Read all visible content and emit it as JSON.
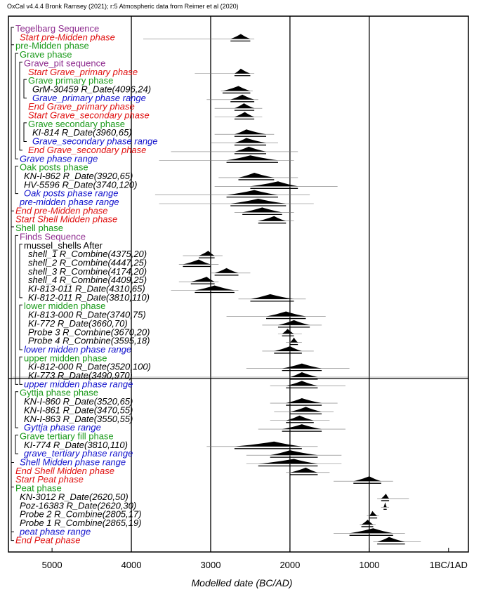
{
  "caption": "OxCal v4.4.4 Bronk Ramsey (2021); r:5 Atmospheric data from Reimer et al (2020)",
  "chart_data": {
    "type": "oxcal-multiplot",
    "title": "",
    "xlabel": "Modelled date (BC/AD)",
    "ylabel": "",
    "x_axis_unit": "calendar year BC (BC/AD at 0)",
    "xlim": [
      5550,
      -250
    ],
    "tick_values": [
      5000,
      4000,
      3000,
      2000,
      1000,
      0
    ],
    "tick_labels": [
      "5000",
      "4000",
      "3000",
      "2000",
      "1000",
      "1BC/1AD"
    ],
    "grid_vertical_at": [
      4000,
      3000,
      2000,
      1000
    ],
    "horizontal_line_after_row": "KI-773 R_Date(3490,970)",
    "colors": {
      "purple": "#8e2c8f",
      "green": "#1a9a1a",
      "red": "#e01010",
      "blue": "#1010cc",
      "black": "#000000"
    },
    "rows": [
      {
        "label": "Tegelbarg Sequence",
        "color": "purple",
        "indent": 0,
        "italic": false
      },
      {
        "label": "Start pre-Midden phase",
        "color": "red",
        "indent": 1,
        "italic": true,
        "range": [
          2750,
          2500
        ],
        "peak": 2620,
        "line": [
          3850,
          2450
        ]
      },
      {
        "label": "pre-Midden phase",
        "color": "green",
        "indent": 0,
        "italic": false
      },
      {
        "label": "Grave phase",
        "color": "green",
        "indent": 1,
        "italic": false
      },
      {
        "label": "Grave_pit sequence",
        "color": "purple",
        "indent": 2,
        "italic": false
      },
      {
        "label": "Start Grave_primary phase",
        "color": "red",
        "indent": 3,
        "italic": true,
        "range": [
          2700,
          2500
        ],
        "peak": 2620,
        "line": [
          3200,
          2450
        ]
      },
      {
        "label": "Grave primary phase",
        "color": "green",
        "indent": 3,
        "italic": false
      },
      {
        "label": "GrM-30459 R_Date(4096,24)",
        "color": "black",
        "indent": 4,
        "italic": true,
        "range": [
          2850,
          2500
        ],
        "peak": 2650,
        "line": [
          2870,
          2470
        ]
      },
      {
        "label": "Grave_primary phase range",
        "color": "blue",
        "indent": 4,
        "italic": true,
        "range": [
          2750,
          2450
        ],
        "peak": 2600,
        "line": [
          3050,
          2400
        ]
      },
      {
        "label": "End Grave_primary phase",
        "color": "red",
        "indent": 3,
        "italic": true,
        "range": [
          2700,
          2450
        ],
        "peak": 2580,
        "line": [
          2950,
          2350
        ]
      },
      {
        "label": "Start Grave_secondary phase",
        "color": "red",
        "indent": 3,
        "italic": true,
        "range": [
          2700,
          2450
        ],
        "peak": 2570,
        "line": [
          2950,
          2350
        ]
      },
      {
        "label": "Grave secondary phase",
        "color": "green",
        "indent": 3,
        "italic": false
      },
      {
        "label": "KI-814 R_Date(3960,65)",
        "color": "black",
        "indent": 4,
        "italic": true,
        "range": [
          2700,
          2300
        ],
        "peak": 2550,
        "line": [
          2950,
          2200
        ]
      },
      {
        "label": "Grave_secondary phase range",
        "color": "blue",
        "indent": 4,
        "italic": true,
        "range": [
          2700,
          2300
        ],
        "peak": 2550,
        "line": [
          3000,
          2150
        ]
      },
      {
        "label": "End Grave_secondary phase",
        "color": "red",
        "indent": 3,
        "italic": true,
        "range": [
          2700,
          2300
        ],
        "peak": 2520,
        "line": [
          3500,
          1900
        ]
      },
      {
        "label": "Grave phase range",
        "color": "blue",
        "indent": 1,
        "italic": true,
        "range": [
          2800,
          2150
        ],
        "peak": 2500,
        "line": [
          3650,
          1950
        ]
      },
      {
        "label": "Oak posts phase",
        "color": "green",
        "indent": 1,
        "italic": false
      },
      {
        "label": "KN-I-862 R_Date(3920,65)",
        "color": "black",
        "indent": 2,
        "italic": true,
        "range": [
          2650,
          2200
        ],
        "peak": 2450,
        "line": [
          2900,
          1900
        ]
      },
      {
        "label": "HV-5596 R_Date(3740,120)",
        "color": "black",
        "indent": 2,
        "italic": true,
        "range": [
          2500,
          1900
        ],
        "peak": 2150,
        "line": [
          2950,
          1400
        ]
      },
      {
        "label": "Oak posts phase range",
        "color": "blue",
        "indent": 2,
        "italic": true,
        "range": [
          2800,
          2150
        ],
        "peak": 2450,
        "line": [
          3700,
          1750
        ]
      },
      {
        "label": "pre-midden phase range",
        "color": "blue",
        "indent": 1,
        "italic": true,
        "range": [
          2750,
          2050
        ],
        "peak": 2400,
        "line": [
          3650,
          1700
        ]
      },
      {
        "label": "End pre-Midden phase",
        "color": "red",
        "indent": 0,
        "italic": true,
        "range": [
          2600,
          2100
        ],
        "peak": 2350,
        "line": [
          2700,
          1950
        ]
      },
      {
        "label": "Start Shell Midden phase",
        "color": "red",
        "indent": 0,
        "italic": true,
        "range": [
          2400,
          2050
        ],
        "peak": 2200,
        "line": [
          2400,
          1950
        ]
      },
      {
        "label": "Shell phase",
        "color": "green",
        "indent": 0,
        "italic": false
      },
      {
        "label": "Finds Sequence",
        "color": "purple",
        "indent": 1,
        "italic": false
      },
      {
        "label": "mussel_shells After",
        "color": "black",
        "indent": 2,
        "italic": false
      },
      {
        "label": "shell_1 R_Combine(4375,20)",
        "color": "black",
        "indent": 3,
        "italic": true,
        "range": [
          3150,
          2950
        ],
        "peak": 3030,
        "line": [
          3350,
          2850
        ]
      },
      {
        "label": "shell_2 R_Combine(4447,25)",
        "color": "black",
        "indent": 3,
        "italic": true,
        "range": [
          3350,
          3000
        ],
        "peak": 3150,
        "line": [
          3400,
          2900
        ]
      },
      {
        "label": "shell_3 R_Combine(4174,20)",
        "color": "black",
        "indent": 3,
        "italic": true,
        "range": [
          2950,
          2650
        ],
        "peak": 2800,
        "line": [
          3000,
          2500
        ]
      },
      {
        "label": "shell_4 R_Combine(4409,25)",
        "color": "black",
        "indent": 3,
        "italic": true,
        "range": [
          3250,
          2950
        ],
        "peak": 3050,
        "line": [
          3400,
          2900
        ]
      },
      {
        "label": "KI-813-011 R_Date(4310,65)",
        "color": "black",
        "indent": 3,
        "italic": true,
        "range": [
          3200,
          2700
        ],
        "peak": 2950,
        "line": [
          3500,
          2650
        ]
      },
      {
        "label": "KI-812-011 R_Date(3810,110)",
        "color": "black",
        "indent": 3,
        "italic": true,
        "range": [
          2500,
          1950
        ],
        "peak": 2250,
        "line": [
          2650,
          1800
        ]
      },
      {
        "label": "lower midden phase",
        "color": "green",
        "indent": 2,
        "italic": false
      },
      {
        "label": "KI-813-000 R_Date(3740,75)",
        "color": "black",
        "indent": 3,
        "italic": true,
        "range": [
          2300,
          1800
        ],
        "peak": 2050,
        "line": [
          2800,
          1550
        ]
      },
      {
        "label": "KI-772 R_Date(3660,70)",
        "color": "black",
        "indent": 3,
        "italic": true,
        "range": [
          2150,
          1750
        ],
        "peak": 1950,
        "line": [
          2350,
          1600
        ]
      },
      {
        "label": "Probe 3 R_Combine(3670,20)",
        "color": "black",
        "indent": 3,
        "italic": true,
        "range": [
          2100,
          1950
        ],
        "peak": 2030,
        "line": [
          2150,
          1850
        ]
      },
      {
        "label": "Probe 4 R_Combine(3595,18)",
        "color": "black",
        "indent": 3,
        "italic": true,
        "range": [
          2000,
          1900
        ],
        "peak": 1950,
        "line": [
          2050,
          1850
        ]
      },
      {
        "label": "lower midden phase range",
        "color": "blue",
        "indent": 2,
        "italic": true,
        "range": [
          2200,
          1850
        ],
        "peak": 2000,
        "line": [
          2350,
          1700
        ]
      },
      {
        "label": "upper midden phase",
        "color": "green",
        "indent": 2,
        "italic": false
      },
      {
        "label": "KI-812-000 R_Date(3520,100)",
        "color": "black",
        "indent": 3,
        "italic": true,
        "range": [
          2100,
          1600
        ],
        "peak": 1850,
        "line": [
          2550,
          1250
        ]
      },
      {
        "label": "KI-773 R_Date(3490,970)",
        "color": "black",
        "indent": 3,
        "italic": true,
        "range": [
          2000,
          1650
        ],
        "peak": 1850,
        "line": [
          5500,
          -250
        ]
      },
      {
        "label": "upper midden phase range",
        "color": "blue",
        "indent": 2,
        "italic": true,
        "range": [
          2050,
          1650
        ],
        "peak": 1850,
        "line": [
          2250,
          1300
        ]
      },
      {
        "label": "Gyttja phase phase",
        "color": "green",
        "indent": 1,
        "italic": false
      },
      {
        "label": "KN-I-860 R_Date(3520,65)",
        "color": "black",
        "indent": 2,
        "italic": true,
        "range": [
          2050,
          1600
        ],
        "peak": 1850,
        "line": [
          2250,
          1400
        ]
      },
      {
        "label": "KN-I-861 R_Date(3470,55)",
        "color": "black",
        "indent": 2,
        "italic": true,
        "range": [
          2000,
          1600
        ],
        "peak": 1800,
        "line": [
          2200,
          1450
        ]
      },
      {
        "label": "KN-I-863 R_Date(3550,55)",
        "color": "black",
        "indent": 2,
        "italic": true,
        "range": [
          2050,
          1700
        ],
        "peak": 1880,
        "line": [
          2250,
          1500
        ]
      },
      {
        "label": "Gyttja phase range",
        "color": "blue",
        "indent": 2,
        "italic": true,
        "range": [
          2100,
          1600
        ],
        "peak": 1850,
        "line": [
          2400,
          1300
        ]
      },
      {
        "label": "Grave tertiary fill phase",
        "color": "green",
        "indent": 1,
        "italic": false
      },
      {
        "label": "KI-774 R_Date(3810,110)",
        "color": "black",
        "indent": 2,
        "italic": true,
        "range": [
          2700,
          1850
        ],
        "peak": 2200,
        "line": [
          3050,
          1650
        ]
      },
      {
        "label": "grave_tertiary phase range",
        "color": "blue",
        "indent": 2,
        "italic": true,
        "range": [
          2250,
          1650
        ],
        "peak": 2000,
        "line": [
          2550,
          1350
        ]
      },
      {
        "label": "Shell Midden phase range",
        "color": "blue",
        "indent": 1,
        "italic": true,
        "range": [
          2400,
          1650
        ],
        "peak": 1950,
        "line": [
          2550,
          1350
        ]
      },
      {
        "label": "End Shell Midden phase",
        "color": "red",
        "indent": 0,
        "italic": true,
        "range": [
          2000,
          1650
        ],
        "peak": 1800,
        "line": [
          2050,
          1500
        ]
      },
      {
        "label": "Start Peat phase",
        "color": "red",
        "indent": 0,
        "italic": true,
        "range": [
          1200,
          850
        ],
        "peak": 1000,
        "line": [
          1450,
          700
        ]
      },
      {
        "label": "Peat phase",
        "color": "green",
        "indent": 0,
        "italic": false
      },
      {
        "label": "KN-3012 R_Date(2620,50)",
        "color": "black",
        "indent": 1,
        "italic": true,
        "range": [
          850,
          750
        ],
        "peak": 790,
        "line": [
          900,
          500
        ]
      },
      {
        "label": "Poz-16383 R_Date(2620,30)",
        "color": "black",
        "indent": 1,
        "italic": true,
        "range": [
          820,
          780
        ],
        "peak": 800,
        "line": [
          850,
          750
        ]
      },
      {
        "label": "Probe 2 R_Combine(2805,17)",
        "color": "black",
        "indent": 1,
        "italic": true,
        "range": [
          1000,
          900
        ],
        "peak": 960,
        "line": [
          1030,
          880
        ]
      },
      {
        "label": "Probe 1 R_Combine(2865,19)",
        "color": "black",
        "indent": 1,
        "italic": true,
        "range": [
          1100,
          950
        ],
        "peak": 1020,
        "line": [
          1120,
          920
        ]
      },
      {
        "label": "peat phase range",
        "color": "blue",
        "indent": 1,
        "italic": true,
        "range": [
          1250,
          700
        ],
        "peak": 950,
        "line": [
          1450,
          550
        ]
      },
      {
        "label": "End Peat phase",
        "color": "red",
        "indent": 0,
        "italic": true,
        "range": [
          900,
          550
        ],
        "peak": 750,
        "line": [
          950,
          350
        ]
      }
    ],
    "brackets": [
      {
        "from": 0,
        "to": 59
      },
      {
        "from": 2,
        "to": 21
      },
      {
        "from": 3,
        "to": 15
      },
      {
        "from": 4,
        "to": 14
      },
      {
        "from": 6,
        "to": 8
      },
      {
        "from": 11,
        "to": 13
      },
      {
        "from": 16,
        "to": 19
      },
      {
        "from": 23,
        "to": 50
      },
      {
        "from": 24,
        "to": 41
      },
      {
        "from": 25,
        "to": 31
      },
      {
        "from": 32,
        "to": 37
      },
      {
        "from": 38,
        "to": 41
      },
      {
        "from": 42,
        "to": 46
      },
      {
        "from": 47,
        "to": 49
      },
      {
        "from": 53,
        "to": 58
      }
    ]
  }
}
